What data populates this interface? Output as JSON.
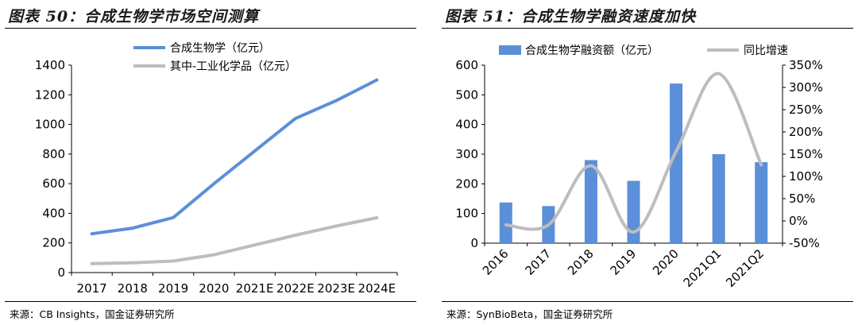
{
  "charts": [
    {
      "title": "图表 50：合成生物学市场空间测算",
      "source": "来源：CB Insights，国金证券研究所",
      "chart_data": {
        "type": "line",
        "categories": [
          "2017",
          "2018",
          "2019",
          "2020",
          "2021E",
          "2022E",
          "2023E",
          "2024E"
        ],
        "ylim": [
          0,
          1400
        ],
        "yticks": [
          "0",
          "200",
          "400",
          "600",
          "800",
          "1000",
          "1200",
          "1400"
        ],
        "series": [
          {
            "name": "合成生物学（亿元）",
            "color": "#5b8fd9",
            "values": [
              262,
              300,
              371,
              600,
              820,
              1040,
              1160,
              1300
            ]
          },
          {
            "name": "其中-工业化学品（亿元）",
            "color": "#bdbdbd",
            "values": [
              60,
              66,
              78,
              120,
              186,
              252,
              314,
              370
            ]
          }
        ],
        "legend": "top-left"
      }
    },
    {
      "title": "图表 51：合成生物学融资速度加快",
      "source": "来源：SynBioBeta，国金证券研究所",
      "chart_data": {
        "type": "bar",
        "categories": [
          "2016",
          "2017",
          "2018",
          "2019",
          "2020",
          "2021Q1",
          "2021Q2"
        ],
        "ylim": [
          0,
          600
        ],
        "yticks": [
          "0",
          "100",
          "200",
          "300",
          "400",
          "500",
          "600"
        ],
        "y2lim": [
          -50,
          350
        ],
        "y2ticks": [
          "-50%",
          "0%",
          "50%",
          "100%",
          "150%",
          "200%",
          "250%",
          "300%",
          "350%"
        ],
        "series": [
          {
            "name": "合成生物学融资额（亿元）",
            "type": "bar",
            "color": "#5b8fd9",
            "values": [
              137,
              125,
              280,
              210,
              538,
              300,
              273
            ]
          },
          {
            "name": "同比增速",
            "type": "line",
            "axis": "right",
            "color": "#bdbdbd",
            "values": [
              -9,
              -9,
              124,
              -25,
              156,
              331,
              126
            ]
          }
        ],
        "legend": "top"
      }
    }
  ]
}
